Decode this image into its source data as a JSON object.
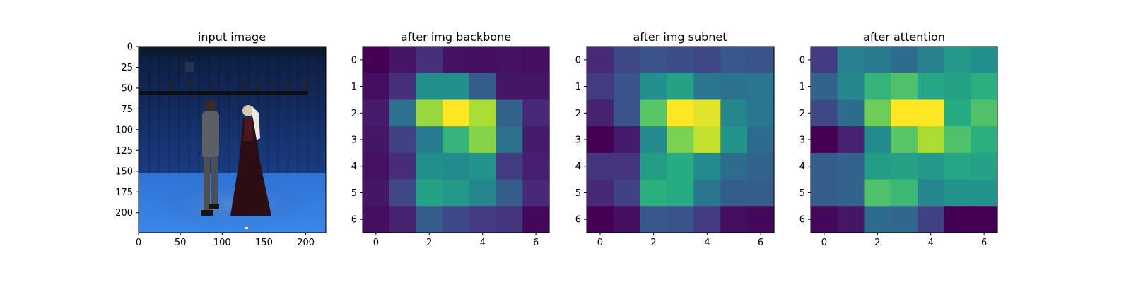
{
  "chart_data": [
    {
      "type": "image",
      "title": "input image",
      "x_ticks": [
        0,
        50,
        100,
        150,
        200
      ],
      "y_ticks": [
        0,
        25,
        50,
        75,
        100,
        125,
        150,
        175,
        200
      ],
      "xlim": [
        0,
        224
      ],
      "ylim": [
        224,
        0
      ],
      "image_description": "studio photo: two people standing facing each other on a blue floor in front of a blue curtain, lighting rig overhead"
    },
    {
      "type": "heatmap",
      "title": "after img backbone",
      "colormap": "viridis",
      "x_ticks": [
        0,
        2,
        4,
        6
      ],
      "y_ticks": [
        0,
        1,
        2,
        3,
        4,
        5,
        6
      ],
      "values": [
        [
          0.0,
          0.06,
          0.14,
          0.05,
          0.04,
          0.05,
          0.04
        ],
        [
          0.04,
          0.14,
          0.5,
          0.5,
          0.3,
          0.06,
          0.06
        ],
        [
          0.08,
          0.38,
          0.85,
          1.0,
          0.88,
          0.32,
          0.12
        ],
        [
          0.06,
          0.2,
          0.42,
          0.66,
          0.82,
          0.38,
          0.08
        ],
        [
          0.05,
          0.13,
          0.5,
          0.48,
          0.52,
          0.18,
          0.09
        ],
        [
          0.06,
          0.22,
          0.58,
          0.54,
          0.46,
          0.3,
          0.12
        ],
        [
          0.04,
          0.1,
          0.3,
          0.22,
          0.18,
          0.16,
          0.02
        ]
      ]
    },
    {
      "type": "heatmap",
      "title": "after img subnet",
      "colormap": "viridis",
      "x_ticks": [
        0,
        2,
        4,
        6
      ],
      "y_ticks": [
        0,
        1,
        2,
        3,
        4,
        5,
        6
      ],
      "values": [
        [
          0.12,
          0.22,
          0.26,
          0.24,
          0.22,
          0.28,
          0.26
        ],
        [
          0.18,
          0.26,
          0.5,
          0.58,
          0.4,
          0.38,
          0.4
        ],
        [
          0.1,
          0.26,
          0.74,
          1.0,
          0.96,
          0.46,
          0.4
        ],
        [
          0.0,
          0.08,
          0.48,
          0.8,
          0.92,
          0.52,
          0.36
        ],
        [
          0.16,
          0.16,
          0.56,
          0.62,
          0.48,
          0.36,
          0.32
        ],
        [
          0.12,
          0.2,
          0.64,
          0.62,
          0.4,
          0.3,
          0.3
        ],
        [
          0.0,
          0.04,
          0.28,
          0.26,
          0.18,
          0.04,
          0.02
        ]
      ]
    },
    {
      "type": "heatmap",
      "title": "after attention",
      "colormap": "viridis",
      "x_ticks": [
        0,
        2,
        4,
        6
      ],
      "y_ticks": [
        0,
        1,
        2,
        3,
        4,
        5,
        6
      ],
      "values": [
        [
          0.18,
          0.44,
          0.42,
          0.36,
          0.44,
          0.54,
          0.5
        ],
        [
          0.32,
          0.46,
          0.66,
          0.72,
          0.6,
          0.58,
          0.64
        ],
        [
          0.22,
          0.36,
          0.78,
          1.0,
          1.0,
          0.62,
          0.72
        ],
        [
          0.0,
          0.1,
          0.48,
          0.74,
          0.88,
          0.72,
          0.64
        ],
        [
          0.3,
          0.32,
          0.56,
          0.58,
          0.54,
          0.6,
          0.58
        ],
        [
          0.3,
          0.32,
          0.72,
          0.68,
          0.46,
          0.52,
          0.52
        ],
        [
          0.02,
          0.06,
          0.36,
          0.34,
          0.2,
          0.0,
          0.0
        ]
      ]
    }
  ]
}
